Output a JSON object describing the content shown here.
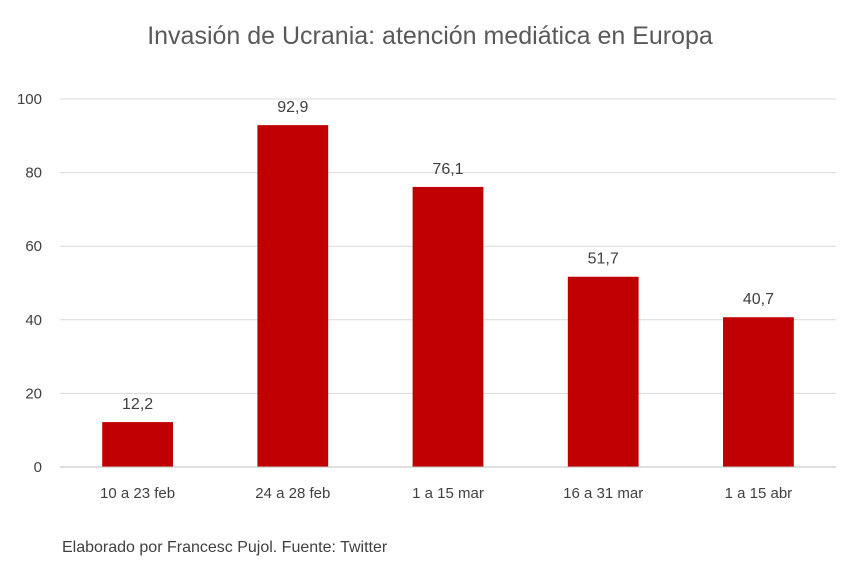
{
  "chart_data": {
    "type": "bar",
    "title": "Invasión de Ucrania: atención mediática en Europa",
    "categories": [
      "10 a 23 feb",
      "24 a 28 feb",
      "1 a 15 mar",
      "16 a 31 mar",
      "1 a 15 abr"
    ],
    "values": [
      12.2,
      92.9,
      76.1,
      51.7,
      40.7
    ],
    "data_labels": [
      "12,2",
      "92,9",
      "76,1",
      "51,7",
      "40,7"
    ],
    "ylim": [
      0,
      100
    ],
    "yticks": [
      0,
      20,
      40,
      60,
      80,
      100
    ],
    "xlabel": "",
    "ylabel": "",
    "grid": true,
    "legend": "none",
    "bar_color": "#c00000"
  },
  "footer": {
    "source": "Elaborado por Francesc Pujol. Fuente: Twitter"
  }
}
